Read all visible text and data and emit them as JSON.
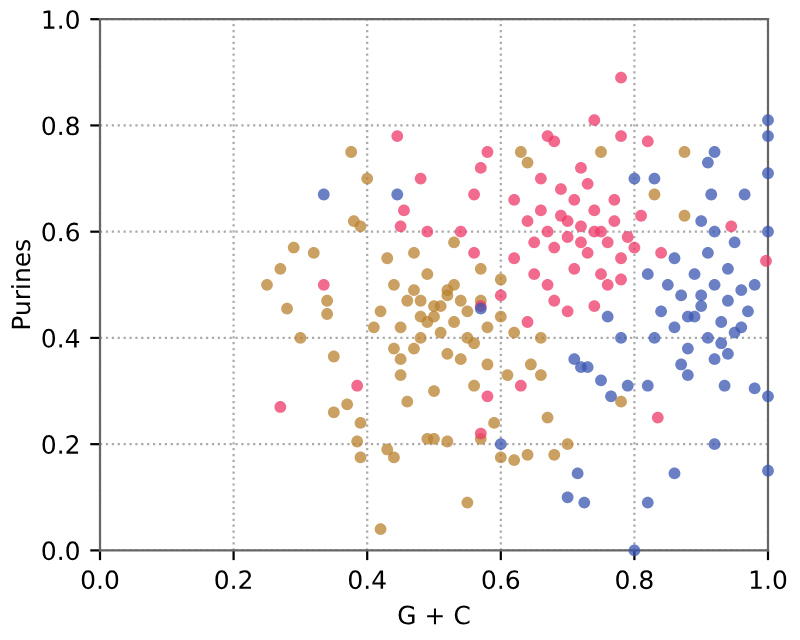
{
  "chart_data": {
    "type": "scatter",
    "xlabel": "G + C",
    "ylabel": "Purines",
    "xlim": [
      0,
      1
    ],
    "ylim": [
      0,
      1
    ],
    "xticks": [
      {
        "value": 0,
        "label": "0.0"
      },
      0.2,
      0.4,
      0.6,
      0.8,
      {
        "value": 1,
        "label": "1.0"
      }
    ],
    "yticks": [
      {
        "value": 0,
        "label": "0.0"
      },
      0.2,
      0.4,
      0.6,
      0.8,
      {
        "value": 1,
        "label": "1.0"
      }
    ],
    "grid": true,
    "marker": "circle",
    "series": [
      {
        "color": "#b8822e",
        "x": [
          0.376,
          0.4,
          0.29,
          0.27,
          0.25,
          0.28,
          0.3,
          0.35,
          0.35,
          0.37,
          0.39,
          0.385,
          0.39,
          0.42,
          0.44,
          0.43,
          0.49,
          0.32,
          0.34,
          0.34,
          0.38,
          0.39,
          0.63,
          0.64,
          0.75,
          0.83,
          0.875,
          0.875,
          0.55,
          0.67,
          0.7,
          0.68,
          0.64,
          0.6,
          0.62,
          0.78,
          0.66,
          0.645,
          0.66,
          0.61,
          0.58,
          0.59,
          0.57,
          0.52,
          0.5,
          0.42,
          0.44,
          0.45,
          0.46,
          0.47,
          0.48,
          0.49,
          0.5,
          0.51,
          0.52,
          0.53,
          0.54,
          0.55,
          0.56,
          0.57,
          0.58,
          0.6,
          0.43,
          0.45,
          0.47,
          0.49,
          0.51,
          0.53,
          0.55,
          0.57,
          0.46,
          0.48,
          0.5,
          0.52,
          0.54,
          0.56,
          0.44,
          0.47,
          0.5,
          0.53,
          0.41,
          0.62,
          0.6,
          0.45,
          0.48,
          0.52
        ],
        "values": [
          0.75,
          0.7,
          0.57,
          0.53,
          0.5,
          0.455,
          0.4,
          0.365,
          0.26,
          0.275,
          0.24,
          0.205,
          0.175,
          0.04,
          0.175,
          0.19,
          0.21,
          0.56,
          0.445,
          0.47,
          0.62,
          0.61,
          0.75,
          0.73,
          0.75,
          0.67,
          0.75,
          0.63,
          0.09,
          0.25,
          0.2,
          0.18,
          0.18,
          0.175,
          0.17,
          0.28,
          0.33,
          0.35,
          0.4,
          0.33,
          0.35,
          0.24,
          0.21,
          0.205,
          0.21,
          0.45,
          0.5,
          0.42,
          0.47,
          0.38,
          0.44,
          0.52,
          0.46,
          0.41,
          0.48,
          0.43,
          0.36,
          0.45,
          0.39,
          0.47,
          0.42,
          0.44,
          0.55,
          0.33,
          0.49,
          0.43,
          0.46,
          0.5,
          0.4,
          0.53,
          0.28,
          0.4,
          0.44,
          0.37,
          0.47,
          0.31,
          0.38,
          0.56,
          0.3,
          0.58,
          0.42,
          0.41,
          0.51,
          0.36,
          0.47,
          0.49
        ]
      },
      {
        "color": "#ee3a6a",
        "x": [
          0.78,
          0.74,
          0.67,
          0.68,
          0.58,
          0.78,
          0.82,
          0.57,
          0.56,
          0.54,
          0.56,
          0.57,
          0.63,
          0.57,
          0.58,
          0.835,
          0.997,
          0.945,
          0.445,
          0.48,
          0.455,
          0.45,
          0.335,
          0.385,
          0.27,
          0.49,
          0.62,
          0.64,
          0.65,
          0.66,
          0.67,
          0.68,
          0.69,
          0.7,
          0.71,
          0.72,
          0.73,
          0.74,
          0.75,
          0.76,
          0.77,
          0.78,
          0.79,
          0.8,
          0.65,
          0.67,
          0.69,
          0.71,
          0.73,
          0.75,
          0.77,
          0.7,
          0.72,
          0.74,
          0.76,
          0.68,
          0.62,
          0.6,
          0.81,
          0.84,
          0.66,
          0.7,
          0.74,
          0.78,
          0.72,
          0.64
        ],
        "values": [
          0.89,
          0.81,
          0.78,
          0.77,
          0.75,
          0.78,
          0.77,
          0.72,
          0.67,
          0.6,
          0.56,
          0.46,
          0.31,
          0.22,
          0.29,
          0.25,
          0.545,
          0.61,
          0.78,
          0.7,
          0.64,
          0.61,
          0.5,
          0.31,
          0.27,
          0.6,
          0.55,
          0.62,
          0.58,
          0.64,
          0.6,
          0.57,
          0.63,
          0.59,
          0.66,
          0.61,
          0.56,
          0.64,
          0.6,
          0.58,
          0.62,
          0.55,
          0.59,
          0.57,
          0.52,
          0.5,
          0.68,
          0.53,
          0.69,
          0.52,
          0.66,
          0.62,
          0.58,
          0.6,
          0.5,
          0.47,
          0.66,
          0.48,
          0.63,
          0.56,
          0.7,
          0.45,
          0.46,
          0.51,
          0.72,
          0.43
        ]
      },
      {
        "color": "#3a55b0",
        "x": [
          0.8,
          0.83,
          0.91,
          0.92,
          1.0,
          1.0,
          1.0,
          0.915,
          0.965,
          0.57,
          0.71,
          0.72,
          0.73,
          0.765,
          0.75,
          0.82,
          0.79,
          0.6,
          0.715,
          0.7,
          0.725,
          0.82,
          0.8,
          0.86,
          0.92,
          0.98,
          1.0,
          1.0,
          0.935,
          0.335,
          0.445,
          0.84,
          0.85,
          0.86,
          0.87,
          0.88,
          0.89,
          0.9,
          0.91,
          0.92,
          0.93,
          0.94,
          0.95,
          0.96,
          0.97,
          0.86,
          0.88,
          0.9,
          0.92,
          0.94,
          0.96,
          0.89,
          0.91,
          0.93,
          0.87,
          0.95,
          0.83,
          0.82,
          0.9,
          0.92,
          0.76,
          0.78,
          0.98,
          1.0,
          0.88,
          0.94
        ],
        "values": [
          0.7,
          0.7,
          0.73,
          0.75,
          0.81,
          0.78,
          0.71,
          0.67,
          0.67,
          0.455,
          0.36,
          0.345,
          0.345,
          0.29,
          0.32,
          0.31,
          0.31,
          0.2,
          0.145,
          0.1,
          0.09,
          0.09,
          0.0,
          0.145,
          0.2,
          0.305,
          0.29,
          0.15,
          0.31,
          0.67,
          0.67,
          0.45,
          0.5,
          0.42,
          0.48,
          0.44,
          0.52,
          0.46,
          0.4,
          0.5,
          0.43,
          0.47,
          0.41,
          0.49,
          0.45,
          0.55,
          0.38,
          0.48,
          0.36,
          0.53,
          0.42,
          0.44,
          0.56,
          0.39,
          0.35,
          0.58,
          0.4,
          0.52,
          0.62,
          0.6,
          0.44,
          0.4,
          0.5,
          0.6,
          0.33,
          0.37
        ]
      }
    ]
  }
}
